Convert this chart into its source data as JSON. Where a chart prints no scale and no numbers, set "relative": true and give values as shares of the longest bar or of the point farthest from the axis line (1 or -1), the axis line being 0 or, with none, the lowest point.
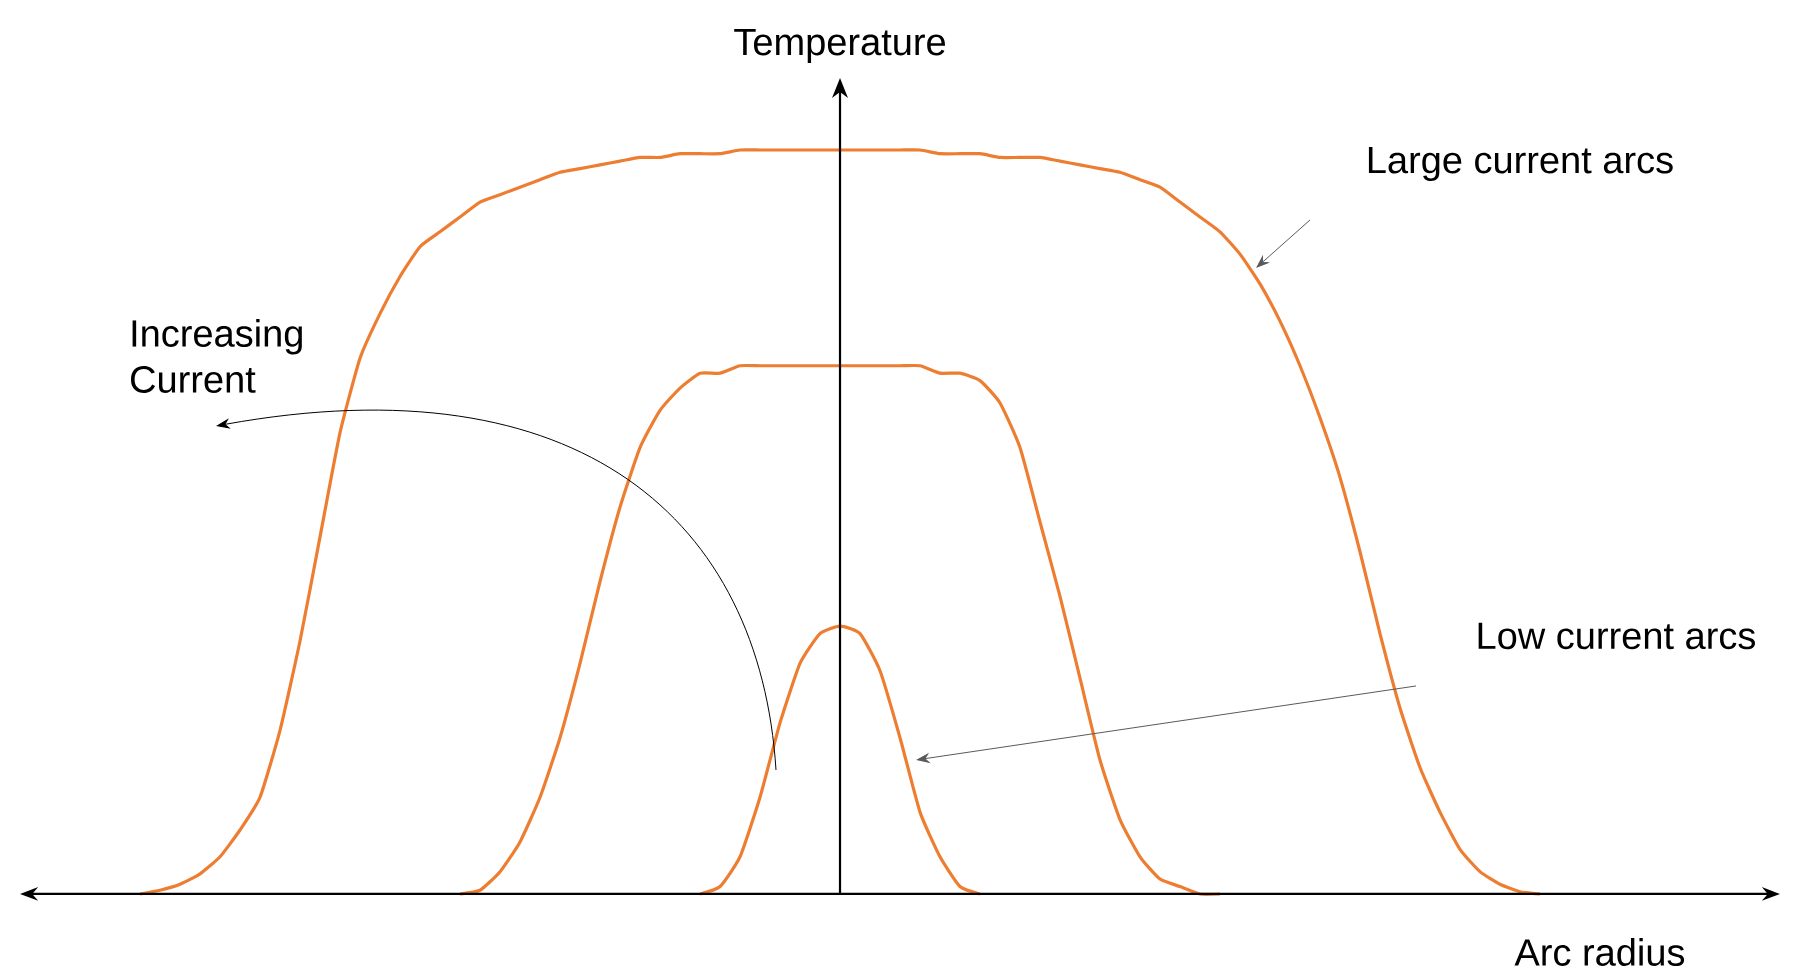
{
  "chart_data": {
    "type": "line",
    "relative": true,
    "xlabel": "Arc radius",
    "ylabel": "Temperature",
    "categories": [
      null,
      null,
      null,
      null,
      null,
      null,
      null,
      null,
      null,
      null,
      null,
      null,
      null,
      null,
      null,
      null,
      null,
      null,
      null,
      null,
      null,
      null,
      null,
      null,
      null,
      null,
      null,
      null,
      null,
      null,
      null,
      null,
      null,
      null,
      null,
      null,
      null,
      null,
      null,
      null,
      null,
      null,
      null,
      null,
      null,
      null,
      null,
      null,
      null,
      null,
      null,
      null,
      null,
      null,
      null,
      null,
      null,
      null,
      null,
      null,
      null,
      null,
      null,
      null,
      null,
      null,
      null,
      null,
      null,
      null,
      null,
      null,
      null,
      null,
      null,
      null,
      null,
      null,
      null,
      null,
      null,
      null,
      null,
      null,
      null,
      null,
      null,
      null,
      null
    ],
    "series": [
      {
        "color": "#ed7d31",
        "values": [
          null,
          null,
          null,
          null,
          null,
          null,
          0,
          0.005,
          0.013,
          0.027,
          0.05,
          0.086,
          0.13,
          0.22,
          0.34,
          0.48,
          0.62,
          0.72,
          0.78,
          0.83,
          0.87,
          0.89,
          0.91,
          0.93,
          0.94,
          0.95,
          0.96,
          0.97,
          0.975,
          0.98,
          0.985,
          0.99,
          0.99,
          0.995,
          0.995,
          0.995,
          1,
          1,
          1,
          1,
          1,
          1,
          1,
          1,
          1,
          1,
          0.995,
          0.995,
          0.995,
          0.99,
          0.99,
          0.99,
          0.985,
          0.98,
          0.975,
          0.97,
          0.96,
          0.95,
          0.93,
          0.91,
          0.89,
          0.86,
          0.82,
          0.77,
          0.71,
          0.64,
          0.56,
          0.46,
          0.35,
          0.25,
          0.17,
          0.11,
          0.06,
          0.03,
          0.013,
          0.003,
          0,
          null,
          null,
          null,
          null,
          null,
          null,
          null,
          null,
          null,
          null,
          null,
          null
        ]
      },
      {
        "color": "#ed7d31",
        "values": [
          null,
          null,
          null,
          null,
          null,
          null,
          null,
          null,
          null,
          null,
          null,
          null,
          null,
          null,
          null,
          null,
          null,
          null,
          null,
          null,
          null,
          null,
          0,
          0.005,
          0.03,
          0.07,
          0.13,
          0.21,
          0.31,
          0.42,
          0.52,
          0.6,
          0.65,
          0.68,
          0.7,
          0.7,
          0.71,
          0.71,
          0.71,
          0.71,
          0.71,
          0.71,
          0.71,
          0.71,
          0.71,
          0.71,
          0.7,
          0.7,
          0.69,
          0.66,
          0.6,
          0.5,
          0.4,
          0.29,
          0.18,
          0.1,
          0.05,
          0.02,
          0.01,
          0,
          0,
          null,
          null,
          null,
          null,
          null,
          null,
          null,
          null,
          null,
          null,
          null,
          null,
          null,
          null,
          null,
          null,
          null,
          null,
          null,
          null,
          null,
          null,
          null,
          null,
          null,
          null,
          null,
          null
        ]
      },
      {
        "color": "#ed7d31",
        "values": [
          null,
          null,
          null,
          null,
          null,
          null,
          null,
          null,
          null,
          null,
          null,
          null,
          null,
          null,
          null,
          null,
          null,
          null,
          null,
          null,
          null,
          null,
          null,
          null,
          null,
          null,
          null,
          null,
          null,
          null,
          null,
          null,
          null,
          null,
          0,
          0.01,
          0.05,
          0.13,
          0.23,
          0.31,
          0.35,
          0.36,
          0.35,
          0.3,
          0.21,
          0.11,
          0.05,
          0.01,
          0,
          null,
          null,
          null,
          null,
          null,
          null,
          null,
          null,
          null,
          null,
          null,
          null,
          null,
          null,
          null,
          null,
          null,
          null,
          null,
          null,
          null,
          null,
          null,
          null,
          null,
          null,
          null,
          null,
          null,
          null,
          null,
          null,
          null,
          null,
          null,
          null,
          null,
          null,
          null,
          null
        ]
      }
    ],
    "annotations": [
      "Large current arcs",
      "Increasing Current",
      "Low current arcs"
    ]
  }
}
